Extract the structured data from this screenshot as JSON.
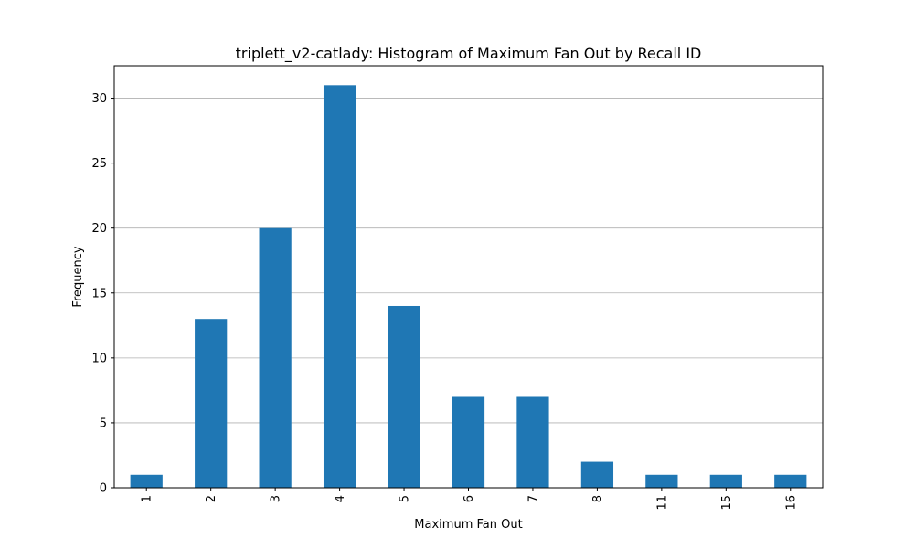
{
  "chart_data": {
    "type": "bar",
    "title": "triplett_v2-catlady: Histogram of Maximum Fan Out by Recall ID",
    "xlabel": "Maximum Fan Out",
    "ylabel": "Frequency",
    "categories": [
      "1",
      "2",
      "3",
      "4",
      "5",
      "6",
      "7",
      "8",
      "11",
      "15",
      "16"
    ],
    "values": [
      1,
      13,
      20,
      31,
      14,
      7,
      7,
      2,
      1,
      1,
      1
    ],
    "ylim": [
      0,
      32.5
    ],
    "yticks": [
      0,
      5,
      10,
      15,
      20,
      25,
      30
    ],
    "grid": "y",
    "legend": "none",
    "bar_color": "#1f77b4",
    "x_tick_rotation": "vertical"
  }
}
